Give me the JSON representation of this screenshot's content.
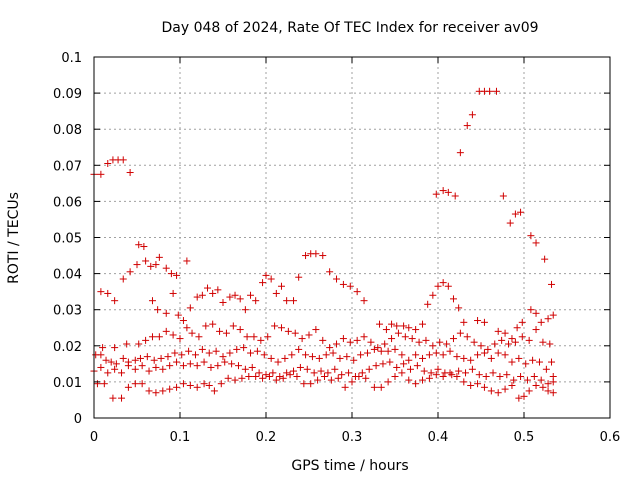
{
  "chart_data": {
    "type": "scatter",
    "title": "Day 048 of 2024, Rate Of TEC Index for receiver av09",
    "xlabel": "GPS time / hours",
    "ylabel": "ROTI / TECUs",
    "xlim": [
      0,
      0.6
    ],
    "ylim": [
      0,
      0.1
    ],
    "xticks": [
      0,
      0.1,
      0.2,
      0.3,
      0.4,
      0.5,
      0.6
    ],
    "xtick_labels": [
      "0",
      "0.1",
      "0.2",
      "0.3",
      "0.4",
      "0.5",
      "0.6"
    ],
    "yticks": [
      0,
      0.01,
      0.02,
      0.03,
      0.04,
      0.05,
      0.06,
      0.07,
      0.08,
      0.09,
      0.1
    ],
    "ytick_labels": [
      "0",
      "0.01",
      "0.02",
      "0.03",
      "0.04",
      "0.05",
      "0.06",
      "0.07",
      "0.08",
      "0.09",
      "0.1"
    ],
    "grid": true,
    "marker": "+",
    "color": "#d00000",
    "points": [
      [
        0.0,
        0.0675
      ],
      [
        0.008,
        0.0675
      ],
      [
        0.016,
        0.0705
      ],
      [
        0.022,
        0.0715
      ],
      [
        0.028,
        0.0715
      ],
      [
        0.034,
        0.0715
      ],
      [
        0.042,
        0.068
      ],
      [
        0.008,
        0.035
      ],
      [
        0.016,
        0.0345
      ],
      [
        0.024,
        0.0325
      ],
      [
        0.034,
        0.0385
      ],
      [
        0.042,
        0.0405
      ],
      [
        0.05,
        0.0425
      ],
      [
        0.052,
        0.048
      ],
      [
        0.058,
        0.0475
      ],
      [
        0.06,
        0.0435
      ],
      [
        0.066,
        0.042
      ],
      [
        0.072,
        0.0425
      ],
      [
        0.076,
        0.0445
      ],
      [
        0.084,
        0.0415
      ],
      [
        0.09,
        0.04
      ],
      [
        0.096,
        0.0395
      ],
      [
        0.108,
        0.0435
      ],
      [
        0.068,
        0.0325
      ],
      [
        0.074,
        0.03
      ],
      [
        0.084,
        0.029
      ],
      [
        0.092,
        0.0345
      ],
      [
        0.098,
        0.0285
      ],
      [
        0.104,
        0.027
      ],
      [
        0.112,
        0.0305
      ],
      [
        0.12,
        0.0335
      ],
      [
        0.126,
        0.034
      ],
      [
        0.132,
        0.036
      ],
      [
        0.138,
        0.0345
      ],
      [
        0.144,
        0.0355
      ],
      [
        0.15,
        0.032
      ],
      [
        0.158,
        0.0335
      ],
      [
        0.164,
        0.034
      ],
      [
        0.17,
        0.033
      ],
      [
        0.176,
        0.03
      ],
      [
        0.182,
        0.034
      ],
      [
        0.188,
        0.0325
      ],
      [
        0.196,
        0.0375
      ],
      [
        0.2,
        0.0395
      ],
      [
        0.206,
        0.0385
      ],
      [
        0.212,
        0.0345
      ],
      [
        0.218,
        0.0365
      ],
      [
        0.224,
        0.0325
      ],
      [
        0.232,
        0.0325
      ],
      [
        0.238,
        0.039
      ],
      [
        0.246,
        0.045
      ],
      [
        0.252,
        0.0455
      ],
      [
        0.258,
        0.0455
      ],
      [
        0.266,
        0.045
      ],
      [
        0.274,
        0.0405
      ],
      [
        0.282,
        0.0385
      ],
      [
        0.29,
        0.037
      ],
      [
        0.298,
        0.0365
      ],
      [
        0.306,
        0.035
      ],
      [
        0.314,
        0.0325
      ],
      [
        0.332,
        0.026
      ],
      [
        0.34,
        0.0245
      ],
      [
        0.346,
        0.026
      ],
      [
        0.352,
        0.0255
      ],
      [
        0.36,
        0.0255
      ],
      [
        0.366,
        0.025
      ],
      [
        0.374,
        0.0245
      ],
      [
        0.382,
        0.026
      ],
      [
        0.388,
        0.0315
      ],
      [
        0.394,
        0.034
      ],
      [
        0.4,
        0.0365
      ],
      [
        0.406,
        0.0375
      ],
      [
        0.412,
        0.0365
      ],
      [
        0.418,
        0.033
      ],
      [
        0.424,
        0.0305
      ],
      [
        0.43,
        0.0265
      ],
      [
        0.398,
        0.062
      ],
      [
        0.406,
        0.063
      ],
      [
        0.412,
        0.0625
      ],
      [
        0.42,
        0.0615
      ],
      [
        0.426,
        0.0735
      ],
      [
        0.434,
        0.081
      ],
      [
        0.44,
        0.084
      ],
      [
        0.448,
        0.0905
      ],
      [
        0.454,
        0.0905
      ],
      [
        0.46,
        0.0905
      ],
      [
        0.468,
        0.0905
      ],
      [
        0.476,
        0.0615
      ],
      [
        0.484,
        0.054
      ],
      [
        0.49,
        0.0565
      ],
      [
        0.496,
        0.057
      ],
      [
        0.508,
        0.0505
      ],
      [
        0.514,
        0.0485
      ],
      [
        0.524,
        0.044
      ],
      [
        0.532,
        0.037
      ],
      [
        0.446,
        0.027
      ],
      [
        0.454,
        0.0265
      ],
      [
        0.47,
        0.024
      ],
      [
        0.478,
        0.0235
      ],
      [
        0.486,
        0.022
      ],
      [
        0.492,
        0.025
      ],
      [
        0.498,
        0.0265
      ],
      [
        0.508,
        0.03
      ],
      [
        0.514,
        0.029
      ],
      [
        0.52,
        0.0265
      ],
      [
        0.528,
        0.0275
      ],
      [
        0.534,
        0.0285
      ],
      [
        0.532,
        0.0155
      ],
      [
        0.002,
        0.0175
      ],
      [
        0.008,
        0.0175
      ],
      [
        0.014,
        0.016
      ],
      [
        0.02,
        0.0155
      ],
      [
        0.026,
        0.015
      ],
      [
        0.034,
        0.0165
      ],
      [
        0.04,
        0.0155
      ],
      [
        0.048,
        0.016
      ],
      [
        0.054,
        0.0165
      ],
      [
        0.062,
        0.017
      ],
      [
        0.07,
        0.016
      ],
      [
        0.078,
        0.0165
      ],
      [
        0.086,
        0.017
      ],
      [
        0.094,
        0.018
      ],
      [
        0.102,
        0.0175
      ],
      [
        0.11,
        0.0185
      ],
      [
        0.118,
        0.0175
      ],
      [
        0.126,
        0.019
      ],
      [
        0.134,
        0.018
      ],
      [
        0.142,
        0.0185
      ],
      [
        0.15,
        0.017
      ],
      [
        0.158,
        0.018
      ],
      [
        0.166,
        0.019
      ],
      [
        0.174,
        0.0195
      ],
      [
        0.182,
        0.018
      ],
      [
        0.19,
        0.0185
      ],
      [
        0.198,
        0.0175
      ],
      [
        0.206,
        0.0165
      ],
      [
        0.214,
        0.0155
      ],
      [
        0.222,
        0.0165
      ],
      [
        0.23,
        0.0175
      ],
      [
        0.238,
        0.019
      ],
      [
        0.246,
        0.0175
      ],
      [
        0.254,
        0.017
      ],
      [
        0.262,
        0.0165
      ],
      [
        0.27,
        0.0175
      ],
      [
        0.278,
        0.018
      ],
      [
        0.286,
        0.0165
      ],
      [
        0.294,
        0.017
      ],
      [
        0.302,
        0.016
      ],
      [
        0.31,
        0.0175
      ],
      [
        0.318,
        0.018
      ],
      [
        0.326,
        0.019
      ],
      [
        0.334,
        0.0185
      ],
      [
        0.342,
        0.0185
      ],
      [
        0.35,
        0.019
      ],
      [
        0.358,
        0.0175
      ],
      [
        0.366,
        0.016
      ],
      [
        0.374,
        0.0175
      ],
      [
        0.382,
        0.0165
      ],
      [
        0.39,
        0.0175
      ],
      [
        0.398,
        0.018
      ],
      [
        0.406,
        0.0175
      ],
      [
        0.414,
        0.0185
      ],
      [
        0.422,
        0.017
      ],
      [
        0.43,
        0.0165
      ],
      [
        0.438,
        0.016
      ],
      [
        0.446,
        0.0175
      ],
      [
        0.454,
        0.018
      ],
      [
        0.462,
        0.0165
      ],
      [
        0.47,
        0.018
      ],
      [
        0.478,
        0.0175
      ],
      [
        0.486,
        0.0155
      ],
      [
        0.494,
        0.0165
      ],
      [
        0.502,
        0.015
      ],
      [
        0.51,
        0.016
      ],
      [
        0.518,
        0.0155
      ],
      [
        0.526,
        0.0135
      ],
      [
        0.534,
        0.0115
      ],
      [
        0.0,
        0.013
      ],
      [
        0.008,
        0.014
      ],
      [
        0.016,
        0.0125
      ],
      [
        0.024,
        0.0135
      ],
      [
        0.032,
        0.0125
      ],
      [
        0.04,
        0.0145
      ],
      [
        0.048,
        0.0135
      ],
      [
        0.056,
        0.0145
      ],
      [
        0.064,
        0.013
      ],
      [
        0.072,
        0.014
      ],
      [
        0.08,
        0.0135
      ],
      [
        0.088,
        0.0145
      ],
      [
        0.096,
        0.0155
      ],
      [
        0.104,
        0.0145
      ],
      [
        0.112,
        0.015
      ],
      [
        0.12,
        0.0145
      ],
      [
        0.128,
        0.0155
      ],
      [
        0.136,
        0.014
      ],
      [
        0.144,
        0.0145
      ],
      [
        0.152,
        0.0155
      ],
      [
        0.16,
        0.015
      ],
      [
        0.168,
        0.0145
      ],
      [
        0.176,
        0.0135
      ],
      [
        0.184,
        0.014
      ],
      [
        0.192,
        0.0125
      ],
      [
        0.2,
        0.012
      ],
      [
        0.208,
        0.0125
      ],
      [
        0.216,
        0.0115
      ],
      [
        0.224,
        0.0125
      ],
      [
        0.232,
        0.013
      ],
      [
        0.24,
        0.014
      ],
      [
        0.248,
        0.0135
      ],
      [
        0.256,
        0.0125
      ],
      [
        0.264,
        0.013
      ],
      [
        0.272,
        0.0125
      ],
      [
        0.28,
        0.0135
      ],
      [
        0.288,
        0.012
      ],
      [
        0.296,
        0.0125
      ],
      [
        0.304,
        0.0115
      ],
      [
        0.312,
        0.0125
      ],
      [
        0.32,
        0.0135
      ],
      [
        0.328,
        0.0145
      ],
      [
        0.336,
        0.015
      ],
      [
        0.344,
        0.0155
      ],
      [
        0.352,
        0.014
      ],
      [
        0.36,
        0.015
      ],
      [
        0.368,
        0.0135
      ],
      [
        0.376,
        0.0145
      ],
      [
        0.384,
        0.013
      ],
      [
        0.392,
        0.0125
      ],
      [
        0.4,
        0.0135
      ],
      [
        0.408,
        0.0125
      ],
      [
        0.416,
        0.012
      ],
      [
        0.424,
        0.013
      ],
      [
        0.432,
        0.0125
      ],
      [
        0.44,
        0.0135
      ],
      [
        0.448,
        0.012
      ],
      [
        0.456,
        0.0115
      ],
      [
        0.464,
        0.0125
      ],
      [
        0.472,
        0.0115
      ],
      [
        0.48,
        0.012
      ],
      [
        0.488,
        0.0105
      ],
      [
        0.496,
        0.0115
      ],
      [
        0.504,
        0.0105
      ],
      [
        0.512,
        0.0115
      ],
      [
        0.52,
        0.0105
      ],
      [
        0.528,
        0.0095
      ],
      [
        0.534,
        0.01
      ],
      [
        0.004,
        0.0095
      ],
      [
        0.012,
        0.0095
      ],
      [
        0.022,
        0.0055
      ],
      [
        0.032,
        0.0055
      ],
      [
        0.04,
        0.0085
      ],
      [
        0.048,
        0.0095
      ],
      [
        0.056,
        0.0095
      ],
      [
        0.064,
        0.0075
      ],
      [
        0.072,
        0.007
      ],
      [
        0.08,
        0.0075
      ],
      [
        0.088,
        0.008
      ],
      [
        0.096,
        0.0085
      ],
      [
        0.104,
        0.0095
      ],
      [
        0.112,
        0.009
      ],
      [
        0.12,
        0.0085
      ],
      [
        0.128,
        0.0095
      ],
      [
        0.134,
        0.009
      ],
      [
        0.14,
        0.0075
      ],
      [
        0.148,
        0.0095
      ],
      [
        0.156,
        0.011
      ],
      [
        0.164,
        0.0105
      ],
      [
        0.172,
        0.011
      ],
      [
        0.18,
        0.0115
      ],
      [
        0.188,
        0.0115
      ],
      [
        0.196,
        0.011
      ],
      [
        0.204,
        0.0115
      ],
      [
        0.212,
        0.0105
      ],
      [
        0.22,
        0.011
      ],
      [
        0.228,
        0.012
      ],
      [
        0.236,
        0.0115
      ],
      [
        0.244,
        0.0095
      ],
      [
        0.252,
        0.0095
      ],
      [
        0.26,
        0.0105
      ],
      [
        0.268,
        0.0115
      ],
      [
        0.276,
        0.0105
      ],
      [
        0.284,
        0.011
      ],
      [
        0.292,
        0.0085
      ],
      [
        0.3,
        0.01
      ],
      [
        0.308,
        0.0115
      ],
      [
        0.316,
        0.011
      ],
      [
        0.326,
        0.0085
      ],
      [
        0.334,
        0.0085
      ],
      [
        0.342,
        0.01
      ],
      [
        0.35,
        0.0115
      ],
      [
        0.358,
        0.0125
      ],
      [
        0.366,
        0.0105
      ],
      [
        0.374,
        0.0095
      ],
      [
        0.382,
        0.0105
      ],
      [
        0.39,
        0.011
      ],
      [
        0.398,
        0.012
      ],
      [
        0.406,
        0.0115
      ],
      [
        0.414,
        0.0125
      ],
      [
        0.422,
        0.0115
      ],
      [
        0.43,
        0.01
      ],
      [
        0.438,
        0.009
      ],
      [
        0.446,
        0.0095
      ],
      [
        0.454,
        0.0085
      ],
      [
        0.462,
        0.0075
      ],
      [
        0.47,
        0.007
      ],
      [
        0.478,
        0.008
      ],
      [
        0.486,
        0.009
      ],
      [
        0.494,
        0.0055
      ],
      [
        0.5,
        0.006
      ],
      [
        0.506,
        0.0075
      ],
      [
        0.514,
        0.009
      ],
      [
        0.522,
        0.0085
      ],
      [
        0.528,
        0.0075
      ],
      [
        0.534,
        0.007
      ],
      [
        0.01,
        0.0195
      ],
      [
        0.024,
        0.0195
      ],
      [
        0.038,
        0.0205
      ],
      [
        0.052,
        0.0205
      ],
      [
        0.06,
        0.0215
      ],
      [
        0.068,
        0.0225
      ],
      [
        0.076,
        0.0225
      ],
      [
        0.084,
        0.024
      ],
      [
        0.092,
        0.023
      ],
      [
        0.1,
        0.022
      ],
      [
        0.108,
        0.025
      ],
      [
        0.114,
        0.0235
      ],
      [
        0.122,
        0.0225
      ],
      [
        0.13,
        0.0255
      ],
      [
        0.138,
        0.026
      ],
      [
        0.146,
        0.024
      ],
      [
        0.154,
        0.0235
      ],
      [
        0.162,
        0.0255
      ],
      [
        0.17,
        0.0245
      ],
      [
        0.178,
        0.0225
      ],
      [
        0.186,
        0.0225
      ],
      [
        0.194,
        0.0215
      ],
      [
        0.202,
        0.0225
      ],
      [
        0.21,
        0.0255
      ],
      [
        0.218,
        0.025
      ],
      [
        0.226,
        0.024
      ],
      [
        0.234,
        0.0235
      ],
      [
        0.242,
        0.022
      ],
      [
        0.25,
        0.023
      ],
      [
        0.258,
        0.0245
      ],
      [
        0.266,
        0.0215
      ],
      [
        0.274,
        0.0195
      ],
      [
        0.282,
        0.0205
      ],
      [
        0.29,
        0.022
      ],
      [
        0.298,
        0.021
      ],
      [
        0.306,
        0.0215
      ],
      [
        0.314,
        0.0225
      ],
      [
        0.322,
        0.021
      ],
      [
        0.33,
        0.0195
      ],
      [
        0.338,
        0.0205
      ],
      [
        0.346,
        0.022
      ],
      [
        0.354,
        0.0235
      ],
      [
        0.362,
        0.0225
      ],
      [
        0.37,
        0.022
      ],
      [
        0.378,
        0.021
      ],
      [
        0.386,
        0.0215
      ],
      [
        0.394,
        0.02
      ],
      [
        0.402,
        0.021
      ],
      [
        0.41,
        0.0205
      ],
      [
        0.418,
        0.022
      ],
      [
        0.426,
        0.0235
      ],
      [
        0.434,
        0.0225
      ],
      [
        0.442,
        0.021
      ],
      [
        0.45,
        0.02
      ],
      [
        0.458,
        0.019
      ],
      [
        0.466,
        0.0205
      ],
      [
        0.474,
        0.0215
      ],
      [
        0.482,
        0.0205
      ],
      [
        0.49,
        0.021
      ],
      [
        0.498,
        0.0225
      ],
      [
        0.506,
        0.0215
      ],
      [
        0.514,
        0.0245
      ],
      [
        0.522,
        0.021
      ],
      [
        0.53,
        0.0205
      ]
    ]
  }
}
